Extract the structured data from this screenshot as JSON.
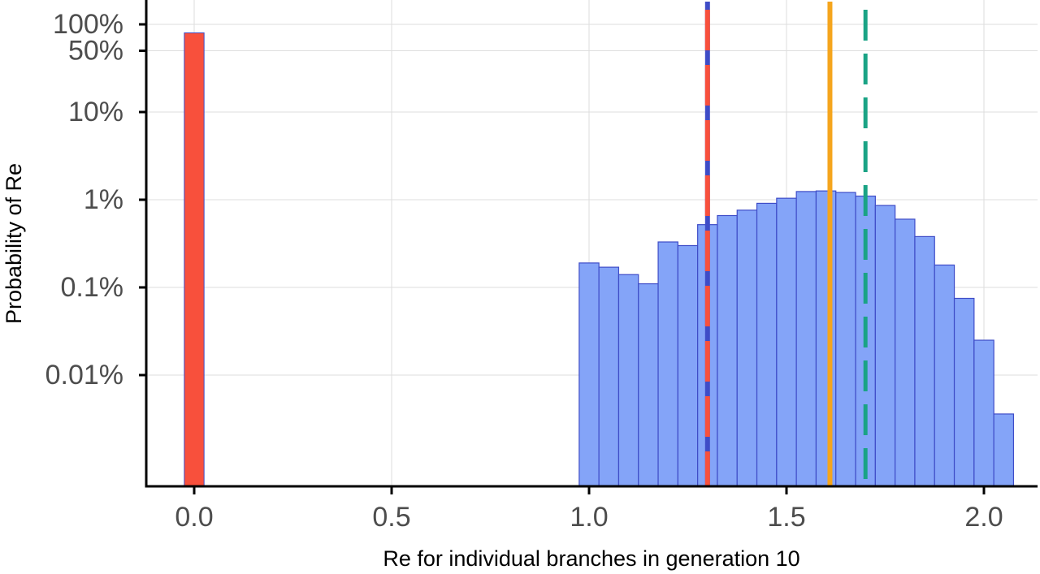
{
  "chart_data": {
    "type": "histogram",
    "xlabel": "Re for individual branches in generation 10",
    "ylabel": "Probability of Re",
    "xlim": [
      -0.12,
      2.12
    ],
    "x_ticks": [
      {
        "value": 0.0,
        "label": "0.0"
      },
      {
        "value": 0.5,
        "label": "0.5"
      },
      {
        "value": 1.0,
        "label": "1.0"
      },
      {
        "value": 1.5,
        "label": "1.5"
      },
      {
        "value": 2.0,
        "label": "2.0"
      }
    ],
    "y_scale": "log",
    "y_ticks": [
      {
        "value": 0.0001,
        "label": "0.01%"
      },
      {
        "value": 0.001,
        "label": "0.1%"
      },
      {
        "value": 0.01,
        "label": "1%"
      },
      {
        "value": 0.1,
        "label": "10%"
      },
      {
        "value": 0.5,
        "label": "50%"
      },
      {
        "value": 1.0,
        "label": "100%"
      }
    ],
    "grid": true,
    "bin_width": 0.05,
    "zero_bar": {
      "x": 0.0,
      "value": 0.8,
      "color": "#f8503c"
    },
    "bars": [
      {
        "x": 1.0,
        "value": 0.0019
      },
      {
        "x": 1.05,
        "value": 0.0017
      },
      {
        "x": 1.1,
        "value": 0.0014
      },
      {
        "x": 1.15,
        "value": 0.0011
      },
      {
        "x": 1.2,
        "value": 0.0033
      },
      {
        "x": 1.25,
        "value": 0.003
      },
      {
        "x": 1.3,
        "value": 0.0052
      },
      {
        "x": 1.35,
        "value": 0.0066
      },
      {
        "x": 1.4,
        "value": 0.0076
      },
      {
        "x": 1.45,
        "value": 0.0091
      },
      {
        "x": 1.5,
        "value": 0.0104
      },
      {
        "x": 1.55,
        "value": 0.0124
      },
      {
        "x": 1.6,
        "value": 0.0126
      },
      {
        "x": 1.65,
        "value": 0.0121
      },
      {
        "x": 1.7,
        "value": 0.011
      },
      {
        "x": 1.75,
        "value": 0.0086
      },
      {
        "x": 1.8,
        "value": 0.006
      },
      {
        "x": 1.85,
        "value": 0.0038
      },
      {
        "x": 1.9,
        "value": 0.0018
      },
      {
        "x": 1.95,
        "value": 0.00075
      },
      {
        "x": 2.0,
        "value": 0.00025
      },
      {
        "x": 2.05,
        "value": 3.6e-05
      }
    ],
    "bar_fill": "#84a4f8",
    "bar_stroke": "#3e4cc7",
    "baseline_value": 5.5e-06,
    "vlines": [
      {
        "x": 1.3,
        "color": "#f8503c",
        "dash_color": "#3e4cc7",
        "style": "red-blue-dashed"
      },
      {
        "x": 1.61,
        "color": "#f5a51d",
        "style": "solid"
      },
      {
        "x": 1.7,
        "color": "#1aa385",
        "style": "dashed"
      }
    ]
  }
}
